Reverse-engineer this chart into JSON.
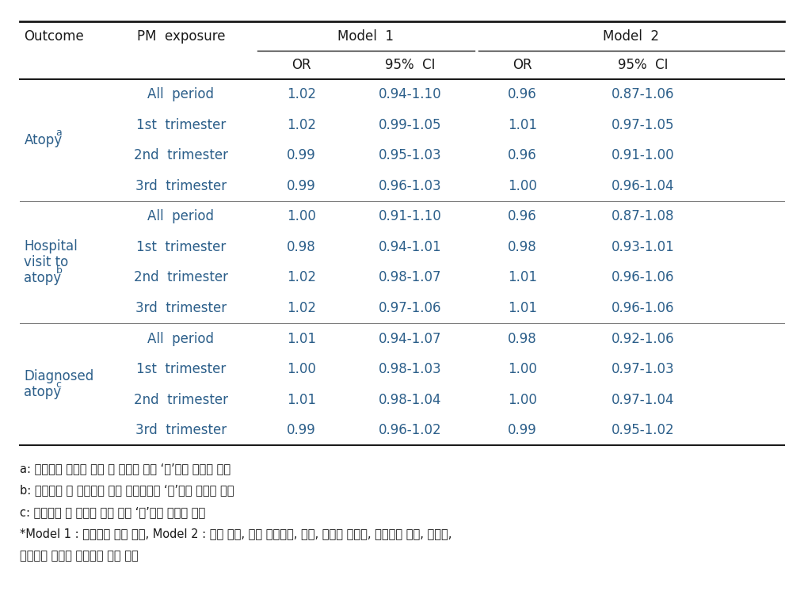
{
  "model1_label": "Model  1",
  "model2_label": "Model  2",
  "col_or_label": "OR",
  "col_ci_label": "95%  CI",
  "col_outcome_label": "Outcome",
  "col_pm_label": "PM  exposure",
  "rows": [
    {
      "outcome_lines": [
        "Atopy"
      ],
      "outcome_sup": "a",
      "pm_exposures": [
        "All  period",
        "1st  trimester",
        "2nd  trimester",
        "3rd  trimester"
      ],
      "m1_or": [
        "1.02",
        "1.02",
        "0.99",
        "0.99"
      ],
      "m1_ci": [
        "0.94-1.10",
        "0.99-1.05",
        "0.95-1.03",
        "0.96-1.03"
      ],
      "m2_or": [
        "0.96",
        "1.01",
        "0.96",
        "1.00"
      ],
      "m2_ci": [
        "0.87-1.06",
        "0.97-1.05",
        "0.91-1.00",
        "0.96-1.04"
      ]
    },
    {
      "outcome_lines": [
        "Hospital",
        "visit to",
        "atopy"
      ],
      "outcome_sup": "b",
      "pm_exposures": [
        "All  period",
        "1st  trimester",
        "2nd  trimester",
        "3rd  trimester"
      ],
      "m1_or": [
        "1.00",
        "0.98",
        "1.02",
        "1.02"
      ],
      "m1_ci": [
        "0.91-1.10",
        "0.94-1.01",
        "0.98-1.07",
        "0.97-1.06"
      ],
      "m2_or": [
        "0.96",
        "0.98",
        "1.01",
        "1.01"
      ],
      "m2_ci": [
        "0.87-1.08",
        "0.93-1.01",
        "0.96-1.06",
        "0.96-1.06"
      ]
    },
    {
      "outcome_lines": [
        "Diagnosed",
        "atopy"
      ],
      "outcome_sup": "c",
      "pm_exposures": [
        "All  period",
        "1st  trimester",
        "2nd  trimester",
        "3rd  trimester"
      ],
      "m1_or": [
        "1.01",
        "1.00",
        "1.01",
        "0.99"
      ],
      "m1_ci": [
        "0.94-1.07",
        "0.98-1.03",
        "0.98-1.04",
        "0.96-1.02"
      ],
      "m2_or": [
        "0.98",
        "1.00",
        "1.00",
        "0.99"
      ],
      "m2_ci": [
        "0.92-1.06",
        "0.97-1.03",
        "0.97-1.04",
        "0.95-1.02"
      ]
    }
  ],
  "footnotes": [
    "a: 신체계측 결과지 문항 중 아토피 여부 ‘예’라고 표기된 경우",
    "b: 설문문항 중 아토피로 인한 병원방문에 ‘예’라고 응답한 경우",
    "c: 설문문항 중 아토피 진단 여부 ‘예’라고 응답한 경우",
    "*Model 1 : 로지스틱 회귀 분석, Model 2 : 아기 성별, 산모 교육수준, 수입, 알러지 가족력, 애완동물 여부, 새가구,",
    "카페트를 보정한 로지스틱 회귀 분석"
  ],
  "text_color": "#2c5f8a",
  "header_color": "#1a1a1a",
  "bg_color": "#ffffff",
  "line_color": "#1a1a1a",
  "font_size": 12,
  "footnote_font_size": 10.5
}
